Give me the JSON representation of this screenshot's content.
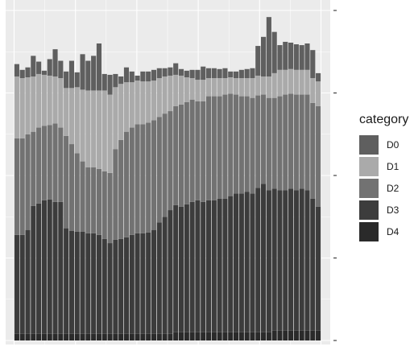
{
  "chart_data": {
    "type": "bar",
    "stacked": true,
    "n_bars": 56,
    "ylim": [
      0,
      4
    ],
    "legend_position": "right",
    "grid": true,
    "series": [
      {
        "name": "D4",
        "color": "#2a2a2a",
        "values": [
          0.08,
          0.08,
          0.08,
          0.08,
          0.08,
          0.08,
          0.08,
          0.08,
          0.08,
          0.08,
          0.08,
          0.08,
          0.08,
          0.08,
          0.08,
          0.08,
          0.08,
          0.08,
          0.08,
          0.08,
          0.08,
          0.08,
          0.08,
          0.08,
          0.08,
          0.08,
          0.08,
          0.08,
          0.08,
          0.1,
          0.1,
          0.1,
          0.1,
          0.1,
          0.1,
          0.1,
          0.1,
          0.1,
          0.1,
          0.1,
          0.1,
          0.1,
          0.1,
          0.1,
          0.1,
          0.1,
          0.1,
          0.12,
          0.12,
          0.12,
          0.12,
          0.12,
          0.12,
          0.12,
          0.12,
          0.12
        ]
      },
      {
        "name": "D3",
        "color": "#3c3c3c",
        "values": [
          1.2,
          1.2,
          1.26,
          1.55,
          1.58,
          1.62,
          1.63,
          1.6,
          1.6,
          1.28,
          1.25,
          1.24,
          1.24,
          1.22,
          1.22,
          1.2,
          1.15,
          1.1,
          1.14,
          1.15,
          1.17,
          1.2,
          1.22,
          1.22,
          1.23,
          1.26,
          1.35,
          1.42,
          1.5,
          1.54,
          1.52,
          1.55,
          1.58,
          1.6,
          1.58,
          1.6,
          1.6,
          1.62,
          1.62,
          1.65,
          1.68,
          1.68,
          1.7,
          1.68,
          1.75,
          1.8,
          1.72,
          1.72,
          1.7,
          1.7,
          1.72,
          1.7,
          1.72,
          1.7,
          1.6,
          1.5
        ]
      },
      {
        "name": "D2",
        "color": "#727272",
        "values": [
          1.17,
          1.17,
          1.16,
          0.9,
          0.92,
          0.9,
          0.9,
          0.95,
          0.9,
          1.12,
          1.05,
          0.95,
          0.85,
          0.8,
          0.8,
          0.8,
          0.82,
          0.85,
          1.1,
          1.2,
          1.28,
          1.3,
          1.32,
          1.32,
          1.33,
          1.33,
          1.28,
          1.25,
          1.2,
          1.2,
          1.24,
          1.24,
          1.24,
          1.2,
          1.22,
          1.26,
          1.26,
          1.24,
          1.26,
          1.24,
          1.2,
          1.18,
          1.16,
          1.16,
          1.12,
          1.08,
          1.12,
          1.1,
          1.14,
          1.16,
          1.15,
          1.16,
          1.14,
          1.16,
          1.16,
          1.22
        ]
      },
      {
        "name": "D1",
        "color": "#aaaaaa",
        "values": [
          0.75,
          0.73,
          0.69,
          0.67,
          0.65,
          0.62,
          0.6,
          0.57,
          0.6,
          0.58,
          0.68,
          0.8,
          0.87,
          0.93,
          0.93,
          0.95,
          0.98,
          0.95,
          0.75,
          0.68,
          0.6,
          0.55,
          0.53,
          0.52,
          0.5,
          0.48,
          0.47,
          0.45,
          0.43,
          0.38,
          0.35,
          0.3,
          0.26,
          0.26,
          0.26,
          0.22,
          0.22,
          0.22,
          0.2,
          0.2,
          0.2,
          0.22,
          0.22,
          0.24,
          0.24,
          0.22,
          0.26,
          0.3,
          0.32,
          0.3,
          0.3,
          0.3,
          0.3,
          0.3,
          0.3,
          0.3
        ]
      },
      {
        "name": "D0",
        "color": "#5f5f5f",
        "values": [
          0.15,
          0.1,
          0.12,
          0.25,
          0.15,
          0.05,
          0.2,
          0.33,
          0.21,
          0.2,
          0.33,
          0.18,
          0.43,
          0.36,
          0.42,
          0.57,
          0.2,
          0.24,
          0.16,
          0.09,
          0.18,
          0.13,
          0.06,
          0.12,
          0.12,
          0.13,
          0.12,
          0.1,
          0.1,
          0.14,
          0.08,
          0.08,
          0.1,
          0.12,
          0.16,
          0.12,
          0.12,
          0.11,
          0.12,
          0.07,
          0.08,
          0.1,
          0.11,
          0.12,
          0.36,
          0.48,
          0.72,
          0.5,
          0.3,
          0.34,
          0.32,
          0.31,
          0.3,
          0.32,
          0.34,
          0.1
        ]
      }
    ]
  },
  "legend": {
    "title": "category",
    "items": [
      {
        "label": "D0",
        "color": "#5f5f5f"
      },
      {
        "label": "D1",
        "color": "#aaaaaa"
      },
      {
        "label": "D2",
        "color": "#727272"
      },
      {
        "label": "D3",
        "color": "#3c3c3c"
      },
      {
        "label": "D4",
        "color": "#2a2a2a"
      }
    ]
  }
}
